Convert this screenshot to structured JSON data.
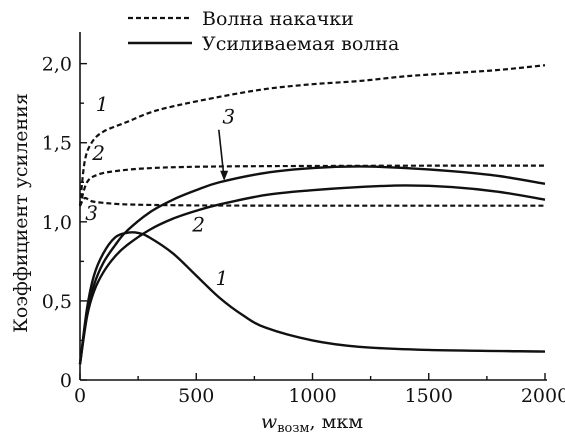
{
  "chart_data": {
    "type": "line",
    "xlabel": "w",
    "xlabel_sub": "возм",
    "xlabel_unit": ", мкм",
    "ylabel": "Коэффициент усиления",
    "xlim": [
      0,
      2000
    ],
    "ylim": [
      0,
      2.2
    ],
    "xticks": [
      0,
      500,
      1000,
      1500,
      2000
    ],
    "xtick_labels": [
      "0",
      "500",
      "1000",
      "1500",
      "2000"
    ],
    "yticks": [
      0,
      0.5,
      1.0,
      1.5,
      2.0
    ],
    "ytick_labels": [
      "0",
      "0,5",
      "1,0",
      "1,5",
      "2,0"
    ],
    "grid": false,
    "legend_position": "top-center",
    "legend": [
      {
        "label": "Волна накачки",
        "style": "dashed"
      },
      {
        "label": "Усиливаемая волна",
        "style": "solid"
      }
    ],
    "series": [
      {
        "group": "Волна накачки",
        "curve": "1",
        "style": "dashed",
        "x": [
          0,
          20,
          50,
          100,
          200,
          300,
          400,
          600,
          800,
          1000,
          1200,
          1400,
          1600,
          1800,
          2000
        ],
        "y": [
          1.1,
          1.38,
          1.5,
          1.57,
          1.63,
          1.69,
          1.73,
          1.79,
          1.84,
          1.87,
          1.89,
          1.92,
          1.94,
          1.96,
          1.99
        ]
      },
      {
        "group": "Волна накачки",
        "curve": "2",
        "style": "dashed",
        "x": [
          0,
          30,
          80,
          150,
          250,
          400,
          600,
          800,
          1000,
          1500,
          2000
        ],
        "y": [
          1.1,
          1.25,
          1.3,
          1.32,
          1.335,
          1.345,
          1.35,
          1.352,
          1.353,
          1.355,
          1.355
        ]
      },
      {
        "group": "Волна накачки",
        "curve": "3",
        "style": "dashed",
        "x": [
          0,
          20,
          50,
          100,
          200,
          400,
          600,
          1000,
          1500,
          2000
        ],
        "y": [
          1.1,
          1.15,
          1.13,
          1.12,
          1.11,
          1.105,
          1.103,
          1.102,
          1.102,
          1.102
        ]
      },
      {
        "group": "Усиливаемая волна",
        "curve": "1",
        "style": "solid",
        "x": [
          0,
          30,
          60,
          100,
          150,
          200,
          250,
          300,
          400,
          500,
          600,
          700,
          800,
          1000,
          1200,
          1500,
          2000
        ],
        "y": [
          0.1,
          0.45,
          0.66,
          0.8,
          0.9,
          0.93,
          0.93,
          0.9,
          0.8,
          0.66,
          0.52,
          0.41,
          0.33,
          0.25,
          0.21,
          0.19,
          0.18
        ]
      },
      {
        "group": "Усиливаемая волна",
        "curve": "2",
        "style": "solid",
        "x": [
          0,
          30,
          60,
          100,
          150,
          200,
          300,
          400,
          500,
          600,
          800,
          1000,
          1200,
          1400,
          1600,
          1800,
          2000
        ],
        "y": [
          0.1,
          0.4,
          0.56,
          0.68,
          0.78,
          0.85,
          0.95,
          1.02,
          1.07,
          1.11,
          1.17,
          1.2,
          1.22,
          1.23,
          1.22,
          1.19,
          1.14
        ]
      },
      {
        "group": "Усиливаемая волна",
        "curve": "3",
        "style": "solid",
        "x": [
          0,
          30,
          60,
          100,
          150,
          200,
          300,
          400,
          500,
          600,
          800,
          1000,
          1200,
          1400,
          1600,
          1800,
          2000
        ],
        "y": [
          0.1,
          0.42,
          0.6,
          0.74,
          0.85,
          0.94,
          1.06,
          1.14,
          1.2,
          1.25,
          1.31,
          1.34,
          1.35,
          1.34,
          1.32,
          1.29,
          1.24
        ]
      }
    ],
    "annotations": [
      {
        "text": "1",
        "x": 95,
        "y": 1.7,
        "for": "Волна накачки 1"
      },
      {
        "text": "2",
        "x": 80,
        "y": 1.39,
        "for": "Волна накачки 2"
      },
      {
        "text": "3",
        "x": 50,
        "y": 1.01,
        "for": "Волна накачки 3"
      },
      {
        "text": "3",
        "x": 640,
        "y": 1.62,
        "for": "Усиливаемая волна 3",
        "arrow_to": [
          620,
          1.26
        ]
      },
      {
        "text": "2",
        "x": 510,
        "y": 0.94,
        "for": "Усиливаемая волна 2"
      },
      {
        "text": "1",
        "x": 610,
        "y": 0.6,
        "for": "Усиливаемая волна 1"
      }
    ]
  }
}
